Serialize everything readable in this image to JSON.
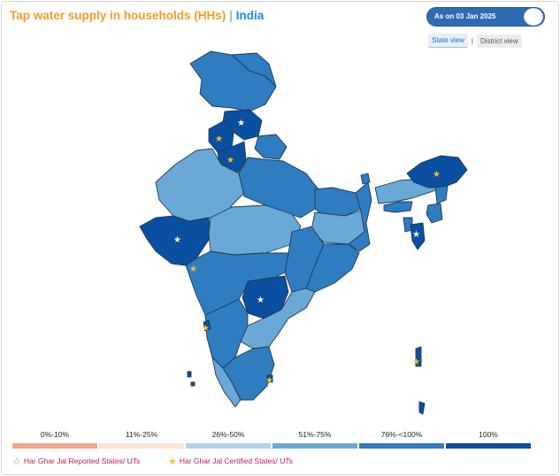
{
  "header": {
    "title": "Tap water supply in households (HHs)",
    "separator": "|",
    "region": "India"
  },
  "toggle": {
    "label": "As on 03 Jan 2025",
    "state": "on"
  },
  "views": {
    "state_view": "State view",
    "separator": "|",
    "district_view": "District view",
    "selected": "State view"
  },
  "legend": {
    "bins": [
      {
        "label": "0%-10%",
        "color": "#f2a58a"
      },
      {
        "label": "11%-25%",
        "color": "#fbe3d6"
      },
      {
        "label": "26%-50%",
        "color": "#b5d2ea"
      },
      {
        "label": "51%-75%",
        "color": "#6aa9d6"
      },
      {
        "label": "76%-<100%",
        "color": "#2f7cc0"
      },
      {
        "label": "100%",
        "color": "#0b4fa0"
      }
    ]
  },
  "key": {
    "reported": {
      "label": "Har Ghar Jal Reported States/ UTs",
      "icon": "star-outline-icon"
    },
    "certified": {
      "label": "Har Ghar Jal Certified States/ UTs",
      "icon": "star-filled-icon"
    }
  },
  "colors": {
    "accent_title": "#f39a2b",
    "accent_region": "#1e88e5",
    "toggle_bg": "#2f6bb3",
    "star_certified": "#f6c21c",
    "star_reported": "#ffffff",
    "key_text": "#c2185b"
  }
}
